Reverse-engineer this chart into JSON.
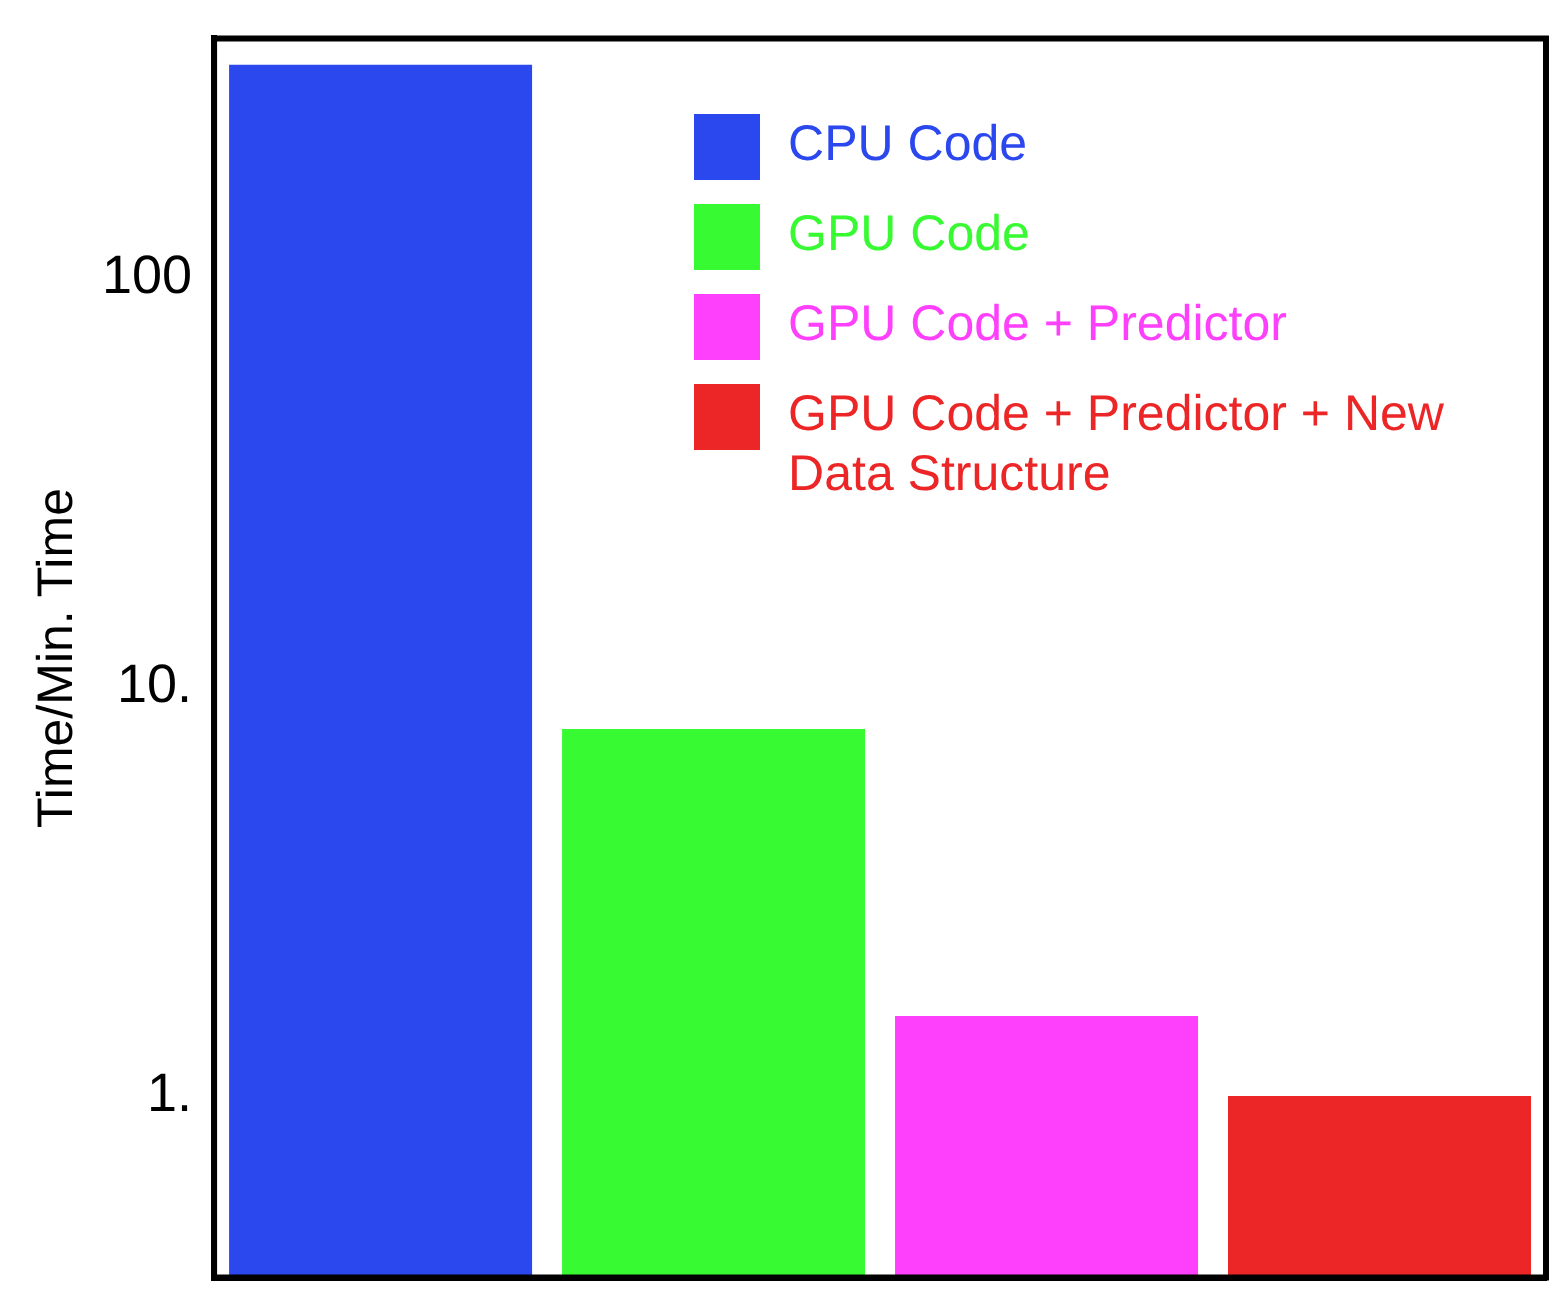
{
  "chart_data": {
    "type": "bar",
    "ylabel": "Time/Min. Time",
    "categories": [
      null,
      null,
      null,
      null
    ],
    "series": [
      {
        "name": "CPU Code",
        "color": "#2b47ee",
        "values": [
          332,
          null,
          null,
          null
        ]
      },
      {
        "name": "GPU Code",
        "color": "#38fa32",
        "values": [
          null,
          7.9,
          null,
          null
        ]
      },
      {
        "name": "GPU Code + Predictor",
        "color": "#fe40fc",
        "values": [
          null,
          null,
          1.57,
          null
        ]
      },
      {
        "name": "GPU Code + Predictor + New Data Structure",
        "color": "#ec2626",
        "values": [
          null,
          null,
          null,
          1.0
        ]
      }
    ],
    "log": "y",
    "ylim": [
      0.36,
      385
    ],
    "yticks": [
      {
        "value": 1,
        "label": "1."
      },
      {
        "value": 10,
        "label": "10."
      },
      100
    ],
    "grid": false,
    "legend": "top right",
    "tick_labels": "y"
  }
}
